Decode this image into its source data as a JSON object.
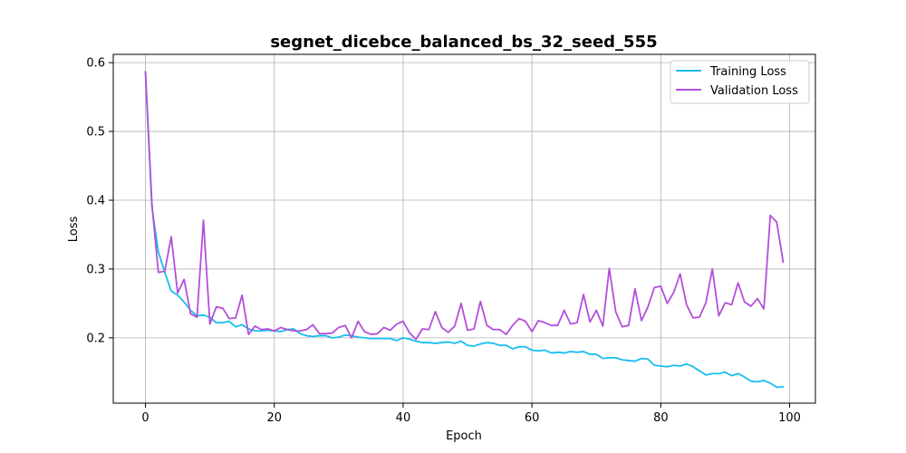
{
  "chart_data": {
    "type": "line",
    "title": "segnet_dicebce_balanced_bs_32_seed_555",
    "xlabel": "Epoch",
    "ylabel": "Loss",
    "xlim": [
      -5,
      104
    ],
    "ylim": [
      0.105,
      0.612
    ],
    "xticks": [
      0,
      20,
      40,
      60,
      80,
      100
    ],
    "yticks": [
      0.2,
      0.3,
      0.4,
      0.5,
      0.6
    ],
    "xtick_labels": [
      "0",
      "20",
      "40",
      "60",
      "80",
      "100"
    ],
    "ytick_labels": [
      "0.2",
      "0.3",
      "0.4",
      "0.5",
      "0.6"
    ],
    "grid": true,
    "legend": "top-right",
    "x": [
      0,
      1,
      2,
      3,
      4,
      5,
      6,
      7,
      8,
      9,
      10,
      11,
      12,
      13,
      14,
      15,
      16,
      17,
      18,
      19,
      20,
      21,
      22,
      23,
      24,
      25,
      26,
      27,
      28,
      29,
      30,
      31,
      32,
      33,
      34,
      35,
      36,
      37,
      38,
      39,
      40,
      41,
      42,
      43,
      44,
      45,
      46,
      47,
      48,
      49,
      50,
      51,
      52,
      53,
      54,
      55,
      56,
      57,
      58,
      59,
      60,
      61,
      62,
      63,
      64,
      65,
      66,
      67,
      68,
      69,
      70,
      71,
      72,
      73,
      74,
      75,
      76,
      77,
      78,
      79,
      80,
      81,
      82,
      83,
      84,
      85,
      86,
      87,
      88,
      89,
      90,
      91,
      92,
      93,
      94,
      95,
      96,
      97,
      98,
      99
    ],
    "series": [
      {
        "name": "Training Loss",
        "color": "#17bef0",
        "values": [
          0.585,
          0.39,
          0.325,
          0.295,
          0.268,
          0.262,
          0.252,
          0.24,
          0.232,
          0.233,
          0.23,
          0.222,
          0.222,
          0.224,
          0.216,
          0.219,
          0.213,
          0.21,
          0.21,
          0.211,
          0.21,
          0.209,
          0.212,
          0.213,
          0.206,
          0.203,
          0.202,
          0.203,
          0.203,
          0.2,
          0.201,
          0.204,
          0.203,
          0.201,
          0.2,
          0.199,
          0.199,
          0.199,
          0.199,
          0.196,
          0.2,
          0.198,
          0.195,
          0.193,
          0.193,
          0.192,
          0.193,
          0.194,
          0.192,
          0.195,
          0.189,
          0.188,
          0.191,
          0.193,
          0.192,
          0.189,
          0.189,
          0.184,
          0.187,
          0.187,
          0.182,
          0.181,
          0.182,
          0.178,
          0.179,
          0.178,
          0.18,
          0.179,
          0.18,
          0.176,
          0.176,
          0.17,
          0.171,
          0.171,
          0.168,
          0.167,
          0.166,
          0.17,
          0.169,
          0.16,
          0.159,
          0.158,
          0.16,
          0.159,
          0.162,
          0.158,
          0.152,
          0.146,
          0.148,
          0.148,
          0.15,
          0.145,
          0.148,
          0.143,
          0.137,
          0.136,
          0.138,
          0.134,
          0.128,
          0.129
        ]
      },
      {
        "name": "Validation Loss",
        "color": "#b44fd8",
        "values": [
          0.587,
          0.395,
          0.295,
          0.297,
          0.347,
          0.265,
          0.285,
          0.235,
          0.23,
          0.371,
          0.22,
          0.245,
          0.243,
          0.228,
          0.229,
          0.262,
          0.205,
          0.217,
          0.212,
          0.213,
          0.21,
          0.215,
          0.212,
          0.21,
          0.21,
          0.212,
          0.219,
          0.206,
          0.206,
          0.207,
          0.215,
          0.218,
          0.2,
          0.224,
          0.209,
          0.205,
          0.206,
          0.215,
          0.211,
          0.22,
          0.224,
          0.207,
          0.198,
          0.213,
          0.212,
          0.238,
          0.215,
          0.208,
          0.217,
          0.25,
          0.211,
          0.213,
          0.253,
          0.218,
          0.212,
          0.212,
          0.205,
          0.218,
          0.228,
          0.224,
          0.209,
          0.225,
          0.222,
          0.218,
          0.218,
          0.24,
          0.22,
          0.222,
          0.263,
          0.223,
          0.24,
          0.217,
          0.301,
          0.238,
          0.216,
          0.218,
          0.271,
          0.225,
          0.245,
          0.273,
          0.275,
          0.25,
          0.266,
          0.293,
          0.248,
          0.229,
          0.23,
          0.251,
          0.3,
          0.232,
          0.251,
          0.248,
          0.28,
          0.252,
          0.246,
          0.257,
          0.242,
          0.378,
          0.368,
          0.31
        ]
      }
    ]
  }
}
